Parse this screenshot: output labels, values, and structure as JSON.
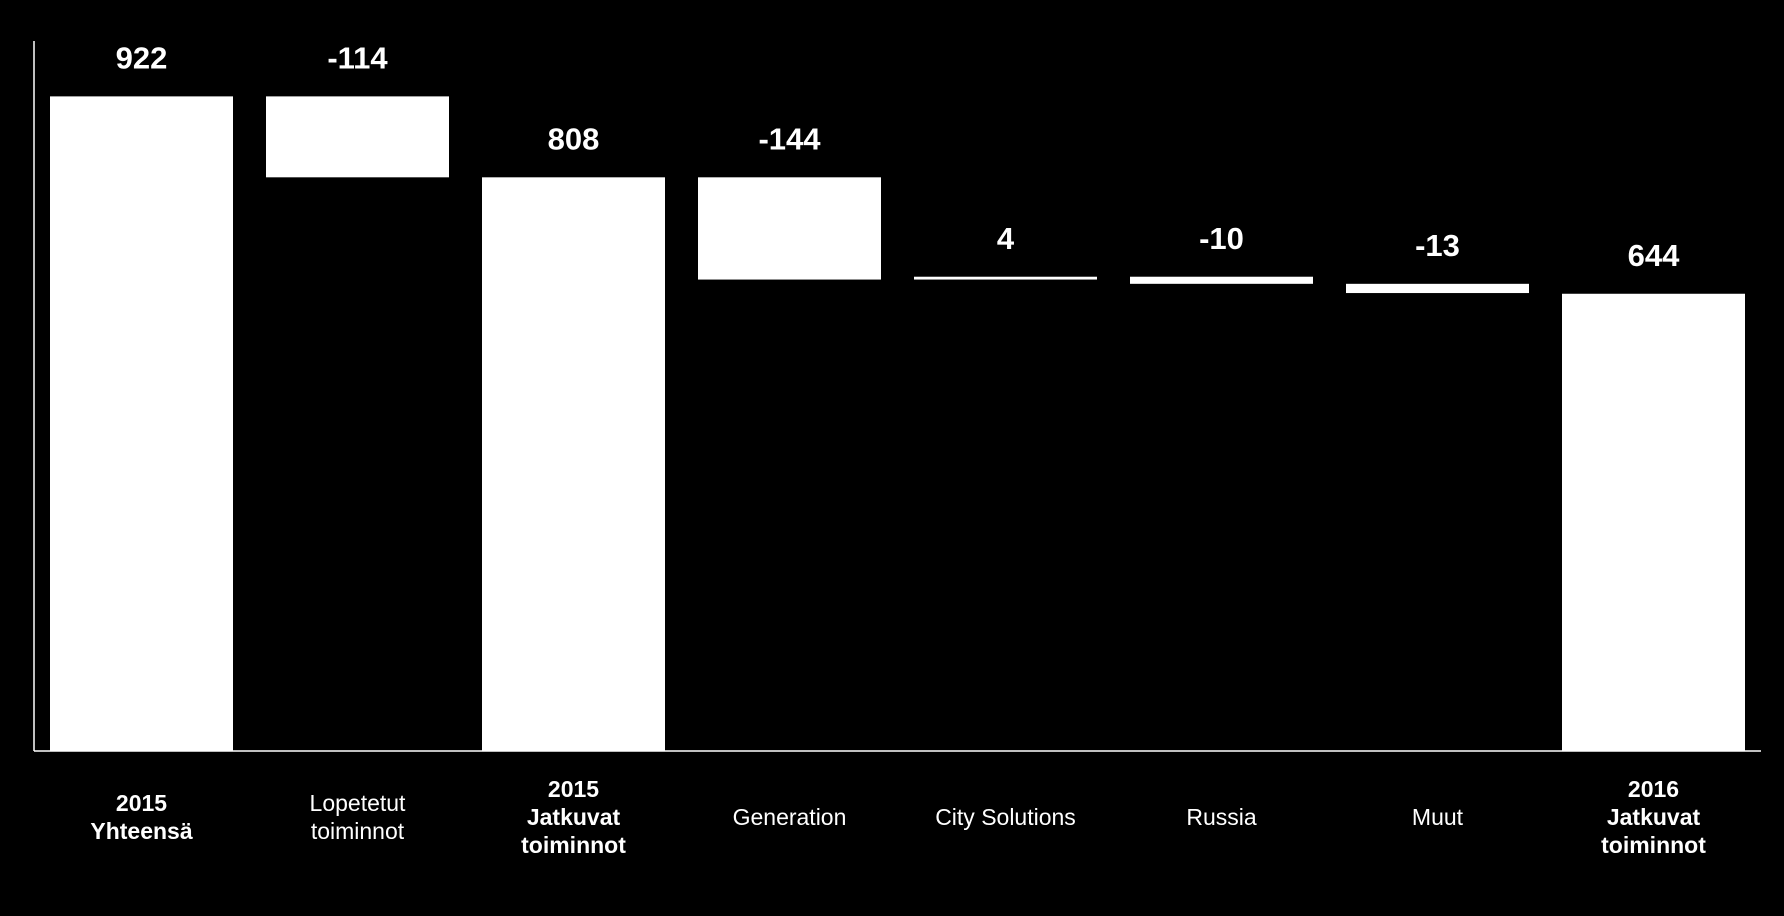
{
  "chart_data": {
    "type": "waterfall",
    "categories": [
      [
        "2015",
        "Yhteensä"
      ],
      [
        "Lopetetut",
        "toiminnot"
      ],
      [
        "2015",
        "Jatkuvat",
        "toiminnot"
      ],
      [
        "Generation"
      ],
      [
        "City Solutions"
      ],
      [
        "Russia"
      ],
      [
        "Muut"
      ],
      [
        "2016",
        "Jatkuvat",
        "toiminnot"
      ]
    ],
    "values": [
      922,
      -114,
      808,
      -144,
      4,
      -10,
      -13,
      644
    ],
    "measure": [
      "total",
      "relative",
      "total",
      "relative",
      "relative",
      "relative",
      "relative",
      "total"
    ],
    "color": "#ffffff",
    "ylim": [
      0,
      1000
    ]
  }
}
